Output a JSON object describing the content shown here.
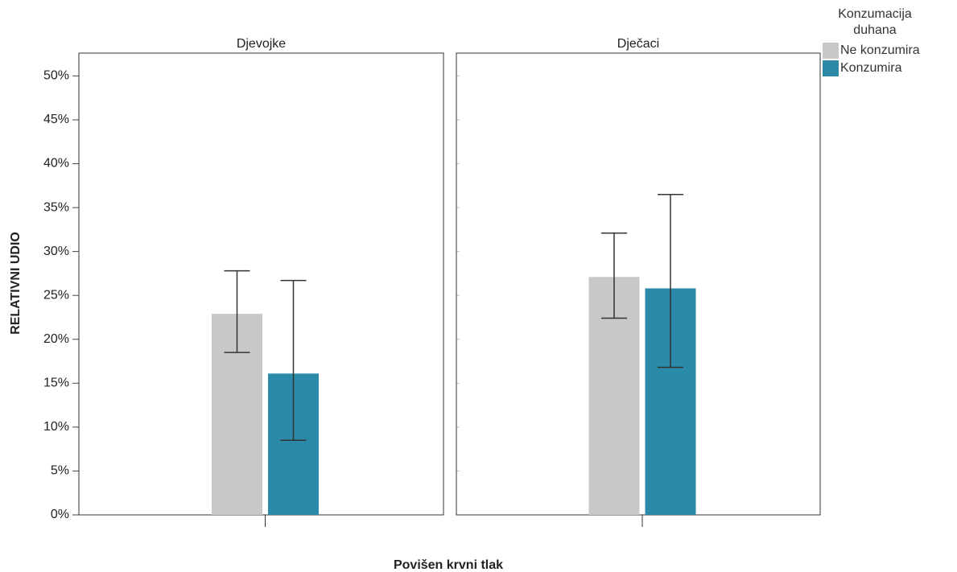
{
  "chart_data": {
    "type": "bar",
    "facets": [
      "Djevojke",
      "Dječaci"
    ],
    "xlabel": "Povišen krvni tlak",
    "ylabel": "RELATIVNI UDIO",
    "legend_title": "Konzumacija duhana",
    "legend_position": "upper right",
    "ylim": [
      0,
      52.6
    ],
    "yticks": [
      {
        "value": 0,
        "label": "0%"
      },
      {
        "value": 5,
        "label": "5%"
      },
      {
        "value": 10,
        "label": "10%"
      },
      {
        "value": 15,
        "label": "15%"
      },
      {
        "value": 20,
        "label": "20%"
      },
      {
        "value": 25,
        "label": "25%"
      },
      {
        "value": 30,
        "label": "30%"
      },
      {
        "value": 35,
        "label": "35%"
      },
      {
        "value": 40,
        "label": "40%"
      },
      {
        "value": 45,
        "label": "45%"
      },
      {
        "value": 50,
        "label": "50%"
      }
    ],
    "series": [
      {
        "name": "Ne konzumira",
        "color": "#c8c8c8",
        "values": [
          22.9,
          27.1
        ],
        "ci_low": [
          18.5,
          22.4
        ],
        "ci_high": [
          27.8,
          32.1
        ]
      },
      {
        "name": "Konzumira",
        "color": "#2a8aa8",
        "values": [
          16.1,
          25.8
        ],
        "ci_low": [
          8.5,
          16.8
        ],
        "ci_high": [
          26.7,
          36.5
        ]
      }
    ]
  }
}
